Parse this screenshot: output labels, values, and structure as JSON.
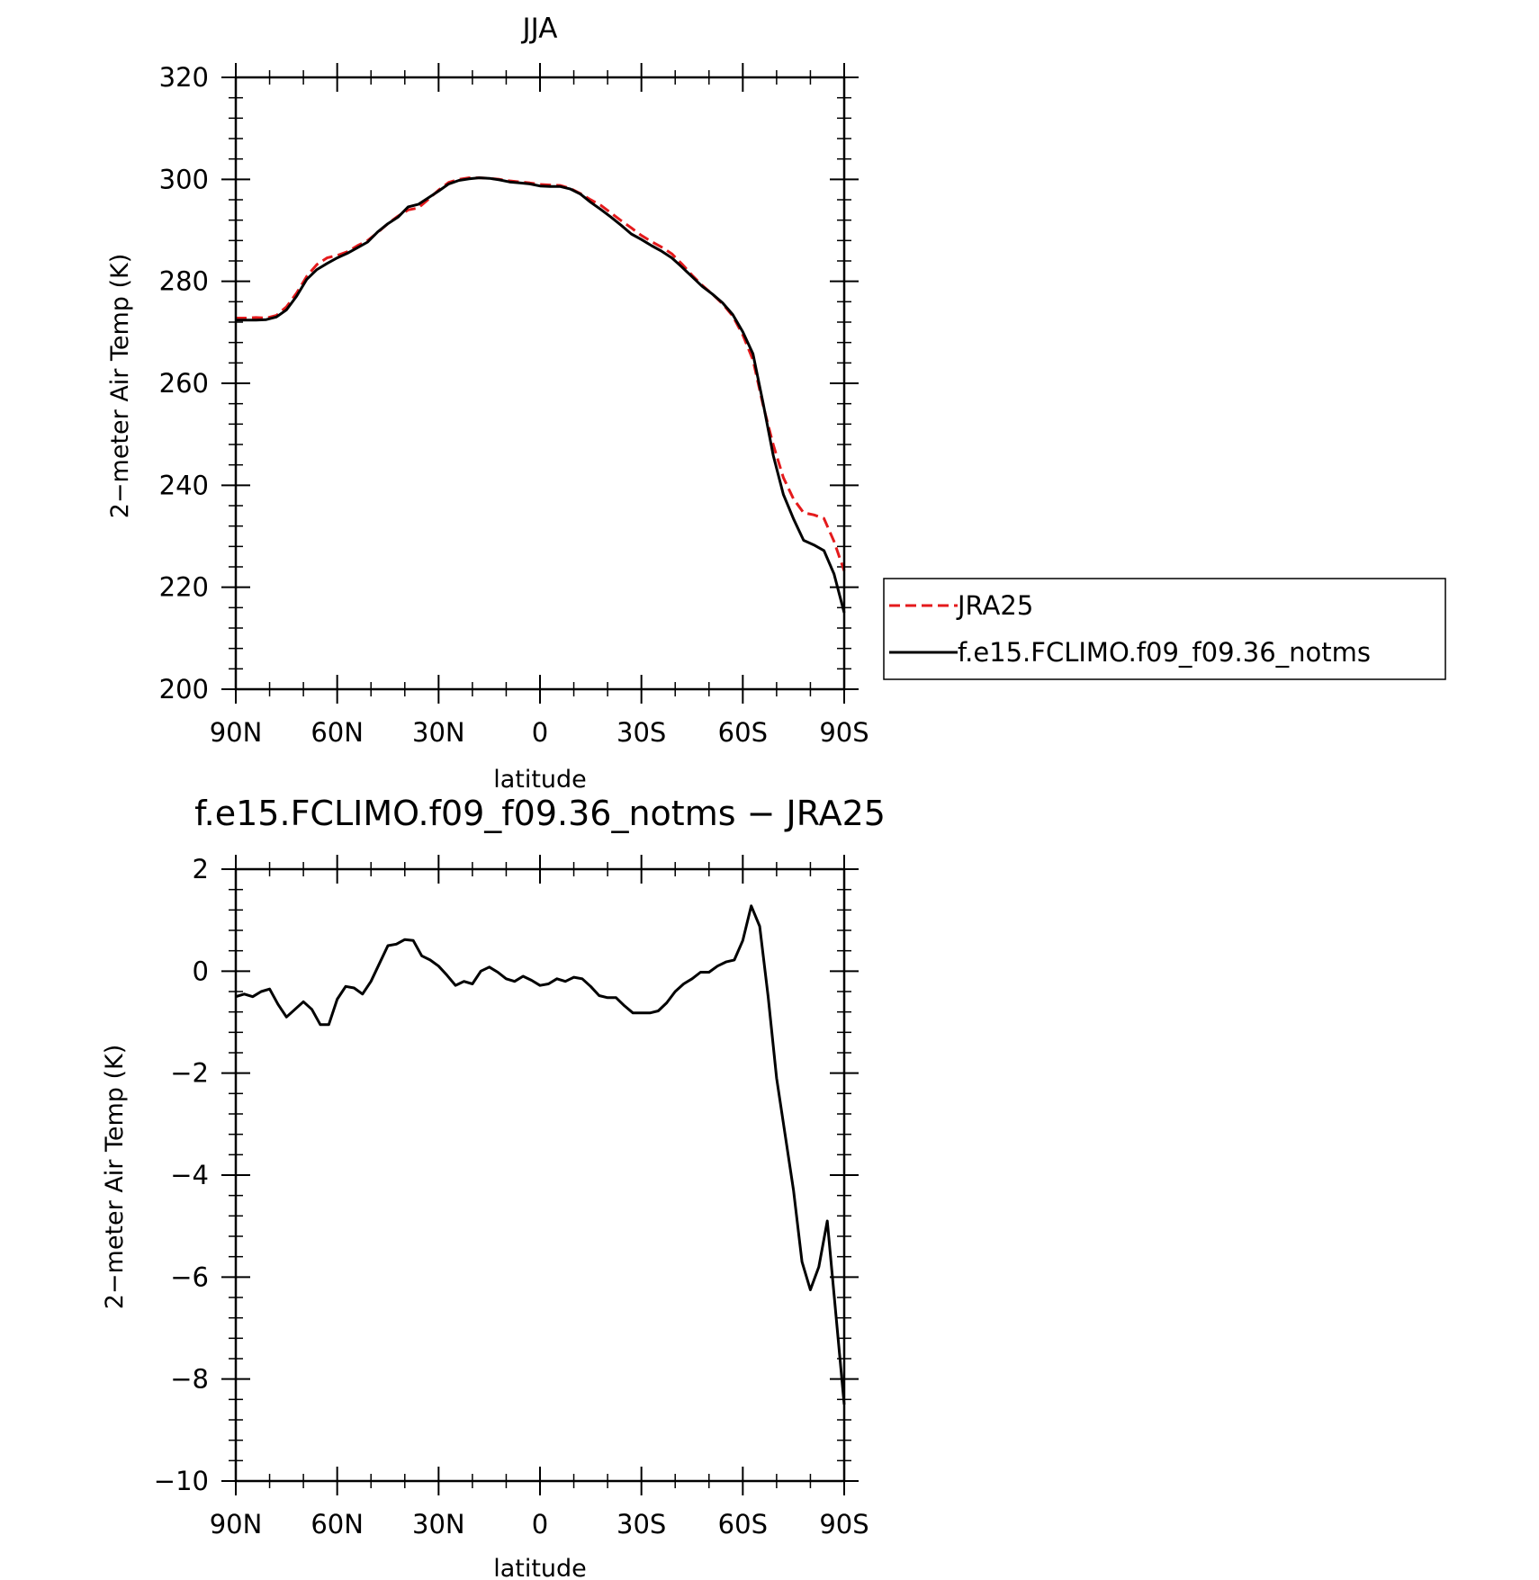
{
  "chart_data": [
    {
      "type": "line",
      "title": "JJA",
      "xlabel": "latitude",
      "ylabel": "2−meter Air Temp (K)",
      "xlim": [
        90,
        -90
      ],
      "ylim": [
        200,
        320
      ],
      "x_tick_values": [
        90,
        60,
        30,
        0,
        -30,
        -60,
        -90
      ],
      "x_tick_labels": [
        "90N",
        "60N",
        "30N",
        "0",
        "30S",
        "60S",
        "90S"
      ],
      "y_ticks": [
        200,
        220,
        240,
        260,
        280,
        300,
        320
      ],
      "y_tick_labels": [
        "200",
        "220",
        "240",
        "260",
        "280",
        "300",
        "320"
      ],
      "grid": false,
      "legend_position": "right",
      "x": [
        90,
        87,
        84,
        81,
        78,
        75,
        72,
        69,
        66,
        63,
        60,
        57,
        54,
        51,
        48,
        45,
        42,
        39,
        36,
        33,
        30,
        27,
        24,
        21,
        18,
        15,
        12,
        9,
        6,
        3,
        0,
        -3,
        -6,
        -9,
        -12,
        -15,
        -18,
        -21,
        -24,
        -27,
        -30,
        -33,
        -36,
        -39,
        -42,
        -45,
        -48,
        -51,
        -54,
        -57,
        -60,
        -63,
        -66,
        -69,
        -72,
        -75,
        -78,
        -81,
        -84,
        -87,
        -90
      ],
      "series": [
        {
          "name": "JRA25",
          "color": "#e41a1c",
          "dash": true,
          "values": [
            272.8,
            272.8,
            272.9,
            272.8,
            273.3,
            275.0,
            277.7,
            281.0,
            283.3,
            284.6,
            285.1,
            285.8,
            287.0,
            288.0,
            289.6,
            291.3,
            292.8,
            294.0,
            294.4,
            296.1,
            297.9,
            299.4,
            300.0,
            300.3,
            300.3,
            300.2,
            300.0,
            299.7,
            299.5,
            299.3,
            299.0,
            298.9,
            298.8,
            298.2,
            297.2,
            296.0,
            294.9,
            293.4,
            291.9,
            290.5,
            289.0,
            287.8,
            286.7,
            285.4,
            283.4,
            281.2,
            279.2,
            277.5,
            275.6,
            273.2,
            269.5,
            264.6,
            255.7,
            248.0,
            241.5,
            237.3,
            234.6,
            234.2,
            233.5,
            229.0,
            223.2
          ]
        },
        {
          "name": "f.e15.FCLIMO.f09_f09.36_notms",
          "color": "#000000",
          "dash": false,
          "values": [
            272.4,
            272.4,
            272.4,
            272.5,
            273.0,
            274.4,
            277.1,
            280.4,
            282.3,
            283.5,
            284.6,
            285.5,
            286.6,
            287.7,
            289.7,
            291.3,
            292.6,
            294.6,
            295.1,
            296.4,
            297.7,
            299.1,
            299.8,
            300.1,
            300.3,
            300.2,
            299.9,
            299.5,
            299.3,
            299.1,
            298.7,
            298.6,
            298.6,
            298.1,
            297.1,
            295.5,
            294.1,
            292.6,
            291.0,
            289.3,
            288.2,
            287.0,
            285.9,
            284.6,
            282.8,
            280.9,
            279.0,
            277.5,
            275.8,
            273.5,
            270.1,
            265.8,
            256.1,
            245.9,
            238.2,
            233.4,
            229.2,
            228.3,
            227.2,
            222.6,
            215.0
          ]
        }
      ]
    },
    {
      "type": "line",
      "title": "f.e15.FCLIMO.f09_f09.36_notms − JRA25",
      "xlabel": "latitude",
      "ylabel": "2−meter Air Temp (K)",
      "xlim": [
        90,
        -90
      ],
      "ylim": [
        -10,
        2
      ],
      "x_tick_values": [
        90,
        60,
        30,
        0,
        -30,
        -60,
        -90
      ],
      "x_tick_labels": [
        "90N",
        "60N",
        "30N",
        "0",
        "30S",
        "60S",
        "90S"
      ],
      "y_ticks": [
        -10,
        -8,
        -6,
        -4,
        -2,
        0,
        2
      ],
      "y_tick_labels": [
        "−10",
        "−8",
        "−6",
        "−4",
        "−2",
        "0",
        "2"
      ],
      "grid": false,
      "x": [
        90,
        87.5,
        85,
        82.5,
        80,
        77.5,
        75,
        72.5,
        70,
        67.5,
        65,
        62.5,
        60,
        57.5,
        55,
        52.5,
        50,
        47.5,
        45,
        42.5,
        40,
        37.5,
        35,
        32.5,
        30,
        27.5,
        25,
        22.5,
        20,
        17.5,
        15,
        12.5,
        10,
        7.5,
        5,
        2.5,
        0,
        -2.5,
        -5,
        -7.5,
        -10,
        -12.5,
        -15,
        -17.5,
        -20,
        -22.5,
        -25,
        -27.5,
        -30,
        -32.5,
        -35,
        -37.5,
        -40,
        -42.5,
        -45,
        -47.5,
        -50,
        -52.5,
        -55,
        -57.5,
        -60,
        -62.5,
        -65,
        -67.5,
        -70,
        -72.5,
        -75,
        -77.5,
        -80,
        -82.5,
        -85,
        -87.5,
        -90
      ],
      "series": [
        {
          "name": "",
          "color": "#000000",
          "dash": false,
          "values": [
            -0.5,
            -0.45,
            -0.5,
            -0.4,
            -0.35,
            -0.65,
            -0.9,
            -0.75,
            -0.6,
            -0.75,
            -1.05,
            -1.05,
            -0.55,
            -0.3,
            -0.33,
            -0.45,
            -0.2,
            0.15,
            0.5,
            0.53,
            0.62,
            0.6,
            0.3,
            0.22,
            0.1,
            -0.08,
            -0.28,
            -0.2,
            -0.25,
            0.0,
            0.08,
            -0.02,
            -0.15,
            -0.2,
            -0.1,
            -0.18,
            -0.28,
            -0.25,
            -0.15,
            -0.2,
            -0.12,
            -0.15,
            -0.3,
            -0.48,
            -0.52,
            -0.52,
            -0.68,
            -0.82,
            -0.82,
            -0.82,
            -0.78,
            -0.62,
            -0.4,
            -0.25,
            -0.15,
            -0.02,
            -0.02,
            0.1,
            0.18,
            0.22,
            0.6,
            1.28,
            0.88,
            -0.5,
            -2.1,
            -3.2,
            -4.3,
            -5.7,
            -6.25,
            -5.8,
            -4.9,
            -6.7,
            -8.5
          ]
        }
      ]
    }
  ]
}
